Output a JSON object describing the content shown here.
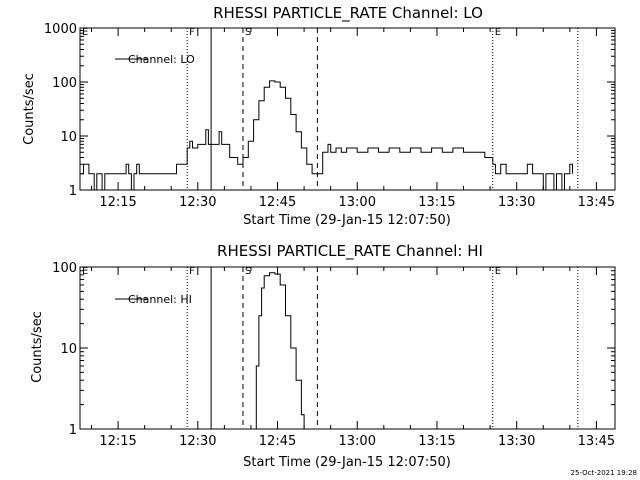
{
  "footer": {
    "timestamp": "25-Oct-2021 19:28"
  },
  "chart_data": [
    {
      "type": "line",
      "title": "RHESSI PARTICLE_RATE Channel: LO",
      "xlabel": "Start Time (29-Jan-15 12:07:50)",
      "ylabel": "Counts/sec",
      "y_scale": "log",
      "ylim": [
        1,
        1000
      ],
      "xlim": [
        "12:07:50",
        "13:48:30"
      ],
      "x_ticks": [
        "12:15",
        "12:30",
        "12:45",
        "13:00",
        "13:15",
        "13:30",
        "13:45"
      ],
      "y_ticks": [
        "1",
        "10",
        "100",
        "1000"
      ],
      "legend": {
        "placement": "top-left",
        "entries": [
          "Channel: LO"
        ]
      },
      "grid": false,
      "markers": [
        {
          "label": "E",
          "time": "12:07:50",
          "style": "dotted"
        },
        {
          "label": "F",
          "time": "12:28:00",
          "style": "dotted"
        },
        {
          "label": "",
          "time": "12:32:30",
          "style": "solid"
        },
        {
          "label": "S",
          "time": "12:38:30",
          "style": "dashed"
        },
        {
          "label": "",
          "time": "12:52:30",
          "style": "dashed"
        },
        {
          "label": "E",
          "time": "13:25:30",
          "style": "dotted"
        },
        {
          "label": "",
          "time": "13:41:30",
          "style": "dotted"
        }
      ],
      "series": [
        {
          "name": "Channel: LO",
          "points": [
            [
              "12:07:50",
              2
            ],
            [
              "12:08:30",
              3
            ],
            [
              "12:09:30",
              2
            ],
            [
              "12:10:30",
              1
            ],
            [
              "12:11:00",
              2
            ],
            [
              "12:12:00",
              1
            ],
            [
              "12:12:30",
              2
            ],
            [
              "12:14:00",
              2
            ],
            [
              "12:16:00",
              2
            ],
            [
              "12:16:30",
              3
            ],
            [
              "12:17:00",
              2
            ],
            [
              "12:17:30",
              1
            ],
            [
              "12:18:00",
              2
            ],
            [
              "12:18:30",
              3
            ],
            [
              "12:19:00",
              2
            ],
            [
              "12:21:00",
              2
            ],
            [
              "12:22:00",
              2
            ],
            [
              "12:23:00",
              2
            ],
            [
              "12:25:00",
              2
            ],
            [
              "12:26:00",
              3
            ],
            [
              "12:27:30",
              3
            ],
            [
              "12:28:00",
              6
            ],
            [
              "12:28:30",
              8
            ],
            [
              "12:29:00",
              6
            ],
            [
              "12:30:00",
              7
            ],
            [
              "12:31:00",
              7
            ],
            [
              "12:31:30",
              13
            ],
            [
              "12:32:00",
              7
            ],
            [
              "12:33:00",
              7
            ],
            [
              "12:34:00",
              12
            ],
            [
              "12:34:30",
              7
            ],
            [
              "12:35:30",
              7
            ],
            [
              "12:36:00",
              4
            ],
            [
              "12:37:30",
              3
            ],
            [
              "12:38:30",
              4
            ],
            [
              "12:39:30",
              8
            ],
            [
              "12:40:30",
              20
            ],
            [
              "12:41:30",
              45
            ],
            [
              "12:42:30",
              80
            ],
            [
              "12:43:30",
              105
            ],
            [
              "12:44:30",
              100
            ],
            [
              "12:45:30",
              80
            ],
            [
              "12:46:30",
              50
            ],
            [
              "12:47:30",
              25
            ],
            [
              "12:48:30",
              12
            ],
            [
              "12:49:30",
              6
            ],
            [
              "12:50:30",
              3
            ],
            [
              "12:51:30",
              2
            ],
            [
              "12:52:30",
              2
            ],
            [
              "12:53:30",
              5
            ],
            [
              "12:54:30",
              7
            ],
            [
              "12:55:00",
              5
            ],
            [
              "12:56:00",
              6
            ],
            [
              "12:57:00",
              5
            ],
            [
              "12:58:00",
              6
            ],
            [
              "13:00:00",
              5
            ],
            [
              "13:02:00",
              6
            ],
            [
              "13:04:00",
              5
            ],
            [
              "13:06:00",
              6
            ],
            [
              "13:08:00",
              5
            ],
            [
              "13:10:00",
              6
            ],
            [
              "13:12:00",
              5
            ],
            [
              "13:14:00",
              6
            ],
            [
              "13:16:00",
              5
            ],
            [
              "13:18:00",
              6
            ],
            [
              "13:20:00",
              5
            ],
            [
              "13:22:00",
              5
            ],
            [
              "13:24:00",
              4
            ],
            [
              "13:25:30",
              3
            ],
            [
              "13:26:00",
              2
            ],
            [
              "13:27:00",
              3
            ],
            [
              "13:28:00",
              2
            ],
            [
              "13:29:00",
              2
            ],
            [
              "13:31:00",
              2
            ],
            [
              "13:32:00",
              3
            ],
            [
              "13:33:00",
              2
            ],
            [
              "13:34:30",
              2
            ],
            [
              "13:35:00",
              1
            ],
            [
              "13:35:30",
              2
            ],
            [
              "13:37:00",
              1
            ],
            [
              "13:37:30",
              2
            ],
            [
              "13:38:30",
              1
            ],
            [
              "13:39:00",
              2
            ],
            [
              "13:40:00",
              3
            ],
            [
              "13:40:30",
              2
            ]
          ]
        }
      ]
    },
    {
      "type": "line",
      "title": "RHESSI PARTICLE_RATE Channel: HI",
      "xlabel": "Start Time (29-Jan-15 12:07:50)",
      "ylabel": "Counts/sec",
      "y_scale": "log",
      "ylim": [
        1,
        100
      ],
      "xlim": [
        "12:07:50",
        "13:48:30"
      ],
      "x_ticks": [
        "12:15",
        "12:30",
        "12:45",
        "13:00",
        "13:15",
        "13:30",
        "13:45"
      ],
      "y_ticks": [
        "1",
        "10",
        "100"
      ],
      "legend": {
        "placement": "top-left",
        "entries": [
          "Channel: HI"
        ]
      },
      "grid": false,
      "markers": [
        {
          "label": "E",
          "time": "12:07:50",
          "style": "dotted"
        },
        {
          "label": "F",
          "time": "12:28:00",
          "style": "dotted"
        },
        {
          "label": "",
          "time": "12:32:30",
          "style": "solid"
        },
        {
          "label": "S",
          "time": "12:38:30",
          "style": "dashed"
        },
        {
          "label": "",
          "time": "12:52:30",
          "style": "dashed"
        },
        {
          "label": "E",
          "time": "13:25:30",
          "style": "dotted"
        },
        {
          "label": "",
          "time": "13:41:30",
          "style": "dotted"
        }
      ],
      "series": [
        {
          "name": "Channel: HI",
          "points": [
            [
              "12:40:00",
              1
            ],
            [
              "12:41:00",
              6
            ],
            [
              "12:41:30",
              25
            ],
            [
              "12:42:00",
              55
            ],
            [
              "12:42:30",
              78
            ],
            [
              "12:43:30",
              85
            ],
            [
              "12:44:30",
              82
            ],
            [
              "12:45:30",
              60
            ],
            [
              "12:46:30",
              25
            ],
            [
              "12:47:30",
              10
            ],
            [
              "12:48:30",
              4
            ],
            [
              "12:49:30",
              1.5
            ],
            [
              "12:50:00",
              1
            ]
          ]
        }
      ]
    }
  ]
}
